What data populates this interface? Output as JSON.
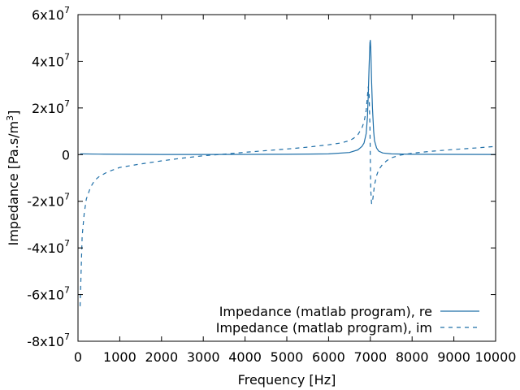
{
  "chart_data": {
    "type": "line",
    "title": "",
    "xlabel": "Frequency [Hz]",
    "ylabel": {
      "prefix": "Impedance [Pa.s/m",
      "superscript": "3",
      "suffix": "]"
    },
    "xlim": [
      0,
      10000
    ],
    "ylim": [
      -80000000,
      60000000
    ],
    "x_ticks": [
      0,
      1000,
      2000,
      3000,
      4000,
      5000,
      6000,
      7000,
      8000,
      9000,
      10000
    ],
    "x_tick_labels": [
      "0",
      "1000",
      "2000",
      "3000",
      "4000",
      "5000",
      "6000",
      "7000",
      "8000",
      "9000",
      "10000"
    ],
    "y_ticks": [
      {
        "value": 60000000,
        "mantissa": "6x10",
        "exp": "7"
      },
      {
        "value": 40000000,
        "mantissa": "4x10",
        "exp": "7"
      },
      {
        "value": 20000000,
        "mantissa": "2x10",
        "exp": "7"
      },
      {
        "value": 0,
        "mantissa": "0",
        "exp": ""
      },
      {
        "value": -20000000,
        "mantissa": "-2x10",
        "exp": "7"
      },
      {
        "value": -40000000,
        "mantissa": "-4x10",
        "exp": "7"
      },
      {
        "value": -60000000,
        "mantissa": "-6x10",
        "exp": "7"
      },
      {
        "value": -80000000,
        "mantissa": "-8x10",
        "exp": "7"
      }
    ],
    "grid": false,
    "legend_position": "bottom-right",
    "series": [
      {
        "name": "Impedance (matlab program), re",
        "style": "solid",
        "color": "#1f6fa8",
        "x": [
          50,
          500,
          1000,
          1500,
          2000,
          3000,
          4000,
          5000,
          6000,
          6500,
          6700,
          6800,
          6850,
          6900,
          6930,
          6950,
          6970,
          6990,
          7000,
          7010,
          7030,
          7050,
          7080,
          7100,
          7150,
          7200,
          7300,
          7500,
          8000,
          9000,
          10000
        ],
        "y": [
          300000,
          200000,
          150000,
          100000,
          80000,
          80000,
          100000,
          150000,
          300000,
          900000,
          2000000,
          3500000,
          5000000,
          9000000,
          16000000,
          25000000,
          38000000,
          48000000,
          49000000,
          46000000,
          32000000,
          20000000,
          10000000,
          6000000,
          2800000,
          1500000,
          700000,
          300000,
          150000,
          100000,
          80000
        ]
      },
      {
        "name": "Impedance (matlab program), im",
        "style": "dashed",
        "color": "#1f6fa8",
        "x": [
          50,
          100,
          150,
          200,
          300,
          400,
          500,
          700,
          1000,
          1500,
          2000,
          2500,
          3000,
          3500,
          4000,
          4500,
          5000,
          5500,
          6000,
          6300,
          6500,
          6600,
          6700,
          6800,
          6850,
          6900,
          6930,
          6950,
          6970,
          6990,
          7000,
          7010,
          7030,
          7060,
          7100,
          7150,
          7200,
          7300,
          7400,
          7500,
          7700,
          8000,
          8500,
          9000,
          9500,
          10000
        ],
        "y": [
          -65000000,
          -35000000,
          -25000000,
          -19000000,
          -14000000,
          -11000000,
          -9500000,
          -7500000,
          -5500000,
          -4000000,
          -2700000,
          -1500000,
          -500000,
          200000,
          1000000,
          1700000,
          2400000,
          3200000,
          4200000,
          5000000,
          6000000,
          7000000,
          8500000,
          11500000,
          14000000,
          19000000,
          25000000,
          29000000,
          26000000,
          12000000,
          -2000000,
          -15000000,
          -21000000,
          -19000000,
          -13000000,
          -9000000,
          -6500000,
          -4000000,
          -2500000,
          -1400000,
          -300000,
          600000,
          1500000,
          2200000,
          2800000,
          3500000
        ]
      }
    ]
  }
}
